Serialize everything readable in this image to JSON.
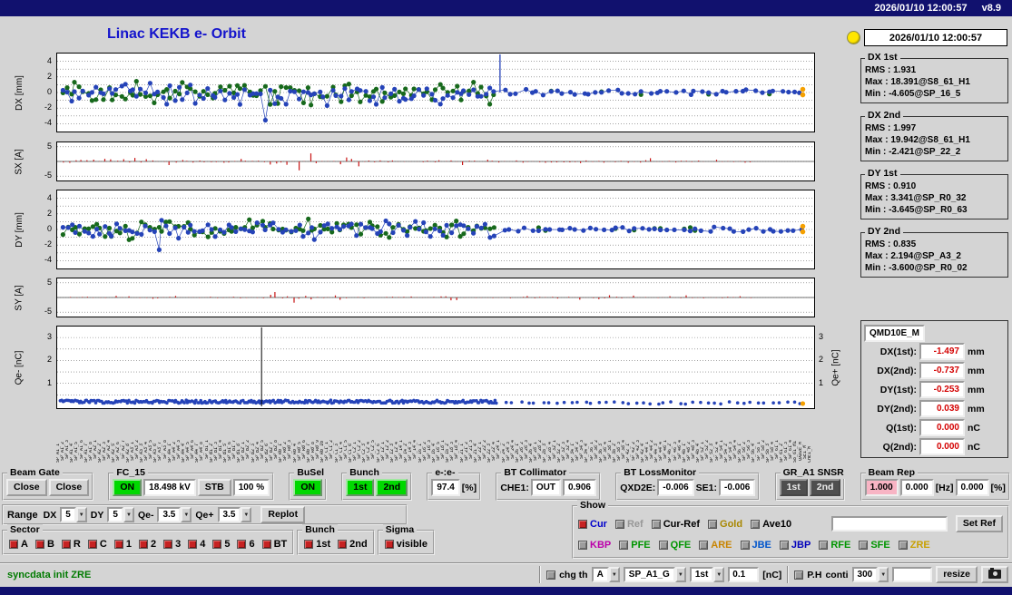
{
  "titlebar": {
    "datetime": "2026/01/10 12:00:57",
    "version": "v8.9"
  },
  "title": "Linac KEKB e- Orbit",
  "icons": {
    "dropdown": "▼"
  },
  "right_panel": {
    "timestamp": "2026/01/10 12:00:57",
    "stats": [
      {
        "title": "DX 1st",
        "lines": [
          "RMS : 1.931",
          "Max : 18.391@S8_61_H1",
          "Min : -4.605@SP_16_5"
        ]
      },
      {
        "title": "DX 2nd",
        "lines": [
          "RMS : 1.997",
          "Max : 19.942@S8_61_H1",
          "Min : -2.421@SP_22_2"
        ]
      },
      {
        "title": "DY 1st",
        "lines": [
          "RMS : 0.910",
          "Max : 3.341@SP_R0_32",
          "Min : -3.645@SP_R0_63"
        ]
      },
      {
        "title": "DY 2nd",
        "lines": [
          "RMS : 0.835",
          "Max : 2.194@SP_A3_2",
          "Min : -3.600@SP_R0_02"
        ]
      }
    ],
    "qmd": {
      "title": "QMD10E_M",
      "rows": [
        {
          "label": "DX(1st):",
          "value": "-1.497",
          "unit": "mm"
        },
        {
          "label": "DX(2nd):",
          "value": "-0.737",
          "unit": "mm"
        },
        {
          "label": "DY(1st):",
          "value": "-0.253",
          "unit": "mm"
        },
        {
          "label": "DY(2nd):",
          "value": "0.039",
          "unit": "mm"
        },
        {
          "label": "Q(1st):",
          "value": "0.000",
          "unit": "nC"
        },
        {
          "label": "Q(2nd):",
          "value": "0.000",
          "unit": "nC"
        }
      ]
    }
  },
  "controls": {
    "beam_gate": {
      "title": "Beam Gate",
      "buttons": [
        "Close",
        "Close"
      ]
    },
    "fc15": {
      "title": "FC_15",
      "on": "ON",
      "kv": "18.498 kV",
      "stb": "STB",
      "pct": "100 %"
    },
    "busel": {
      "title": "BuSel",
      "on": "ON"
    },
    "bunch_sel": {
      "title": "Bunch",
      "b1": "1st",
      "b2": "2nd"
    },
    "ee": {
      "title": "e-:e-",
      "value": "97.4",
      "unit": "[%]"
    },
    "bt_collimator": {
      "title": "BT Collimator",
      "che1_label": "CHE1:",
      "che1": "OUT",
      "value": "0.906"
    },
    "bt_lossmonitor": {
      "title": "BT LossMonitor",
      "qxd2e_label": "QXD2E:",
      "qxd2e": "-0.006",
      "se1_label": "SE1:",
      "se1": "-0.006"
    },
    "gr_snsr": {
      "title": "GR_A1 SNSR",
      "b1": "1st",
      "b2": "2nd"
    },
    "beam_rep": {
      "title": "Beam Rep",
      "v1": "1.000",
      "v2": "0.000",
      "u1": "[Hz]",
      "v3": "0.000",
      "u2": "[%]"
    }
  },
  "range_row": {
    "label": "Range",
    "items": [
      {
        "name": "DX",
        "value": "5"
      },
      {
        "name": "DY",
        "value": "5"
      },
      {
        "name": "Qe-",
        "value": "3.5"
      },
      {
        "name": "Qe+",
        "value": "3.5"
      }
    ],
    "replot": "Replot"
  },
  "sector": {
    "title": "Sector",
    "items": [
      "A",
      "B",
      "R",
      "C",
      "1",
      "2",
      "3",
      "4",
      "5",
      "6",
      "BT"
    ]
  },
  "bunch_box": {
    "title": "Bunch",
    "items": [
      "1st",
      "2nd"
    ]
  },
  "sigma": {
    "title": "Sigma",
    "item": "visible"
  },
  "show": {
    "title": "Show",
    "row1": [
      {
        "label": "Cur",
        "color": "#0000cc",
        "checked": true
      },
      {
        "label": "Ref",
        "color": "#979797",
        "checked": false
      },
      {
        "label": "Cur-Ref",
        "color": "#000000",
        "checked": false
      },
      {
        "label": "Gold",
        "color": "#a88700",
        "checked": false
      },
      {
        "label": "Ave10",
        "color": "#000000",
        "checked": false
      }
    ],
    "set_ref_input": "",
    "set_ref": "Set Ref",
    "row2": [
      {
        "label": "KBP",
        "color": "#bb00aa",
        "checked": false
      },
      {
        "label": "PFE",
        "color": "#009500",
        "checked": false
      },
      {
        "label": "QFE",
        "color": "#009500",
        "checked": false
      },
      {
        "label": "ARE",
        "color": "#c88400",
        "checked": false
      },
      {
        "label": "JBE",
        "color": "#0055cc",
        "checked": false
      },
      {
        "label": "JBP",
        "color": "#0000bb",
        "checked": false
      },
      {
        "label": "RFE",
        "color": "#009500",
        "checked": false
      },
      {
        "label": "SFE",
        "color": "#009500",
        "checked": false
      },
      {
        "label": "ZRE",
        "color": "#c8a000",
        "checked": false
      }
    ]
  },
  "statusbar": {
    "message": "syncdata init ZRE",
    "chg_th": "chg th",
    "combo_a": "A",
    "combo_sp": "SP_A1_G",
    "combo_1st": "1st",
    "threshold": "0.1",
    "nc_unit": "[nC]",
    "ph": "P.H",
    "conti": "conti",
    "combo_300": "300",
    "blank": "",
    "resize": "resize"
  },
  "bpm_groups": [
    {
      "p": "SP_A1_",
      "n": 8
    },
    {
      "p": "SP_A2_",
      "n": 8
    },
    {
      "p": "SP_A3_",
      "n": 8
    },
    {
      "p": "SP_A4_",
      "n": 8
    },
    {
      "p": "SP_B1_",
      "n": 8
    },
    {
      "p": "SP_B2_",
      "n": 8
    },
    {
      "p": "SP_R0_",
      "n": 10
    },
    {
      "p": "SP_C1_",
      "n": 6
    },
    {
      "p": "SP_C2_",
      "n": 6
    },
    {
      "p": "SP_12_",
      "n": 4
    },
    {
      "p": "SP_14_",
      "n": 4
    },
    {
      "p": "SP_16_",
      "n": 5
    },
    {
      "p": "SP_18_",
      "n": 4
    },
    {
      "p": "SP_21_",
      "n": 4
    },
    {
      "p": "SP_22_",
      "n": 4
    },
    {
      "p": "SP_24_",
      "n": 4
    },
    {
      "p": "SP_26_",
      "n": 4
    },
    {
      "p": "SP_28_",
      "n": 4
    },
    {
      "p": "SP_32_",
      "n": 4
    },
    {
      "p": "SP_34_",
      "n": 4
    },
    {
      "p": "SP_36_",
      "n": 4
    },
    {
      "p": "SP_38_",
      "n": 4
    },
    {
      "p": "SP_42_",
      "n": 4
    },
    {
      "p": "SP_44_",
      "n": 4
    },
    {
      "p": "SP_46_",
      "n": 4
    },
    {
      "p": "SP_48_",
      "n": 4
    },
    {
      "p": "SP_52_",
      "n": 4
    },
    {
      "p": "SP_54_",
      "n": 4
    },
    {
      "p": "SP_56_",
      "n": 4
    },
    {
      "p": "SP_58_",
      "n": 4
    },
    {
      "p": "SP_61_",
      "n": 4
    }
  ],
  "bpm_extra": [
    "S8_61_H1",
    "QXD2E_M",
    "SE1_M",
    "CHE1_M"
  ],
  "chart_data": [
    {
      "id": "dx",
      "type": "scatter",
      "ylabel": "DX [mm]",
      "ylim": [
        -5,
        5
      ],
      "yticks": [
        4,
        2,
        0,
        -2,
        -4
      ],
      "grid": [
        -4,
        -3,
        -2,
        -1,
        0,
        1,
        2,
        3,
        4
      ],
      "series": [
        {
          "name": "1st bunch",
          "color": "#2543b8"
        },
        {
          "name": "2nd bunch",
          "color": "#17691c"
        }
      ],
      "gold": "#f5a000",
      "seed": 11,
      "n_dense": 105,
      "n_sparse": 46,
      "amp": 1.25,
      "spike_x": 0.585,
      "dip": {
        "x": 0.272,
        "v": -3.55
      },
      "stats": {
        "rms_1st": 1.931,
        "max_1st": 18.391,
        "min_1st": -4.605,
        "rms_2nd": 1.997,
        "max_2nd": 19.942,
        "min_2nd": -2.421
      }
    },
    {
      "id": "sx",
      "type": "bars",
      "ylabel": "SX [A]",
      "ylim": [
        -6.5,
        6.5
      ],
      "yticks": [
        5,
        -5
      ],
      "grid": [
        -5,
        0,
        5
      ],
      "color": "#c81414",
      "seed": 23,
      "n": 118,
      "amp": 0.8,
      "bursts": [
        {
          "x": 0.095,
          "w": 0.018,
          "amp": 2.4
        },
        {
          "x": 0.33,
          "w": 0.045,
          "amp": 4.2
        },
        {
          "x": 0.385,
          "w": 0.025,
          "amp": 3.0
        }
      ]
    },
    {
      "id": "dy",
      "type": "scatter",
      "ylabel": "DY [mm]",
      "ylim": [
        -5,
        5
      ],
      "yticks": [
        4,
        2,
        0,
        -2,
        -4
      ],
      "grid": [
        -4,
        -3,
        -2,
        -1,
        0,
        1,
        2,
        3,
        4
      ],
      "series": [
        {
          "name": "1st bunch",
          "color": "#2543b8"
        },
        {
          "name": "2nd bunch",
          "color": "#17691c"
        }
      ],
      "gold": "#f5a000",
      "seed": 37,
      "n_dense": 105,
      "n_sparse": 46,
      "amp": 1.05,
      "spike_x": null,
      "dip": {
        "x": 0.125,
        "v": -2.6
      },
      "stats": {
        "rms_1st": 0.91,
        "max_1st": 3.341,
        "min_1st": -3.645,
        "rms_2nd": 0.835,
        "max_2nd": 2.194,
        "min_2nd": -3.6
      }
    },
    {
      "id": "sy",
      "type": "bars",
      "ylabel": "SY [A]",
      "ylim": [
        -6.5,
        6.5
      ],
      "yticks": [
        5,
        -5
      ],
      "grid": [
        -5,
        0,
        5
      ],
      "color": "#c81414",
      "seed": 41,
      "n": 118,
      "amp": 0.5,
      "bursts": [
        {
          "x": 0.3,
          "w": 0.035,
          "amp": 3.4
        },
        {
          "x": 0.52,
          "w": 0.02,
          "amp": 1.6
        }
      ]
    },
    {
      "id": "q",
      "type": "charge",
      "ylabel": "Qe- [nC]",
      "ylabel_right": "Qe+ [nC]",
      "ylim": [
        0,
        3.4
      ],
      "yticks": [
        3,
        2,
        1
      ],
      "grid": [
        0.5,
        1,
        1.5,
        2,
        2.5,
        3
      ],
      "color": "#2543b8",
      "gold": "#f5a000",
      "seed": 53,
      "n": 300,
      "base": 0.14,
      "black_line_x": 0.27
    }
  ]
}
